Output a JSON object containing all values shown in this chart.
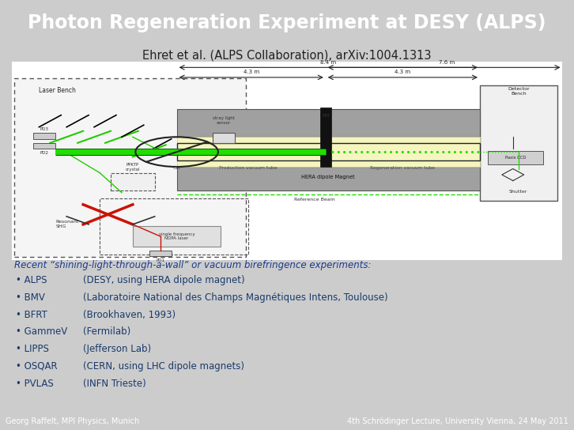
{
  "title": "Photon Regeneration Experiment at DESY (ALPS)",
  "subtitle": "Ehret et al. (ALPS Collaboration), arXiv:1004.1313",
  "title_bg_color": "#787878",
  "title_text_color": "#ffffff",
  "bg_color": "#cccccc",
  "diagram_bg_color": "#ffffff",
  "recent_text": "Recent “shining-light-through-a-wall” or vacuum birefringence experiments:",
  "bullet_items": [
    [
      "ALPS",
      "(DESY, using HERA dipole magnet)"
    ],
    [
      "BMV",
      "(Laboratoire National des Champs Magnétiques Intens, Toulouse)"
    ],
    [
      "BFRT",
      "(Brookhaven, 1993)"
    ],
    [
      "GammeV",
      "(Fermilab)"
    ],
    [
      "LIPPS",
      "(Jefferson Lab)"
    ],
    [
      "OSQAR",
      "(CERN, using LHC dipole magnets)"
    ],
    [
      "PVLAS",
      "(INFN Trieste)"
    ]
  ],
  "footer_left": "Georg Raffelt, MPI Physics, Munich",
  "footer_right": "4th Schrödinger Lecture, University Vienna, 24 May 2011",
  "footer_bg": "#888888",
  "footer_color": "#ffffff",
  "bullet_color": "#1a3a6b",
  "text_color": "#1a1a1a",
  "recent_color": "#1a3a8c"
}
